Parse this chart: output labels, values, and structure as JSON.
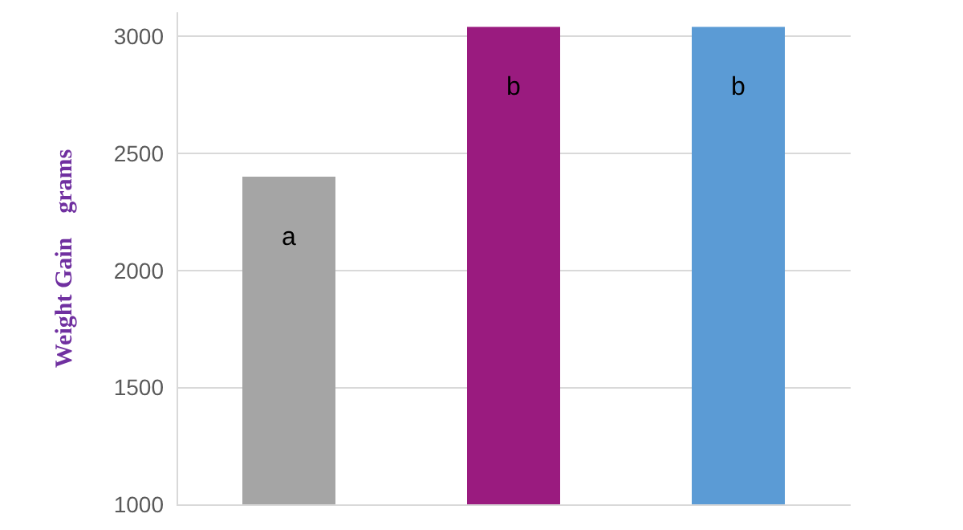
{
  "chart_data": {
    "type": "bar",
    "ylabel": "Weight Gain    grams",
    "categories": [
      null,
      null,
      null
    ],
    "values": [
      2400,
      3040,
      3040
    ],
    "colors": [
      "#a5a5a5",
      "#9a1b7f",
      "#5b9bd5"
    ],
    "value_labels": [
      "a",
      "b",
      "b"
    ],
    "ylim": [
      1000,
      3100
    ],
    "yticks": [
      1000,
      1500,
      2000,
      2500,
      3000
    ],
    "grid": "y"
  }
}
